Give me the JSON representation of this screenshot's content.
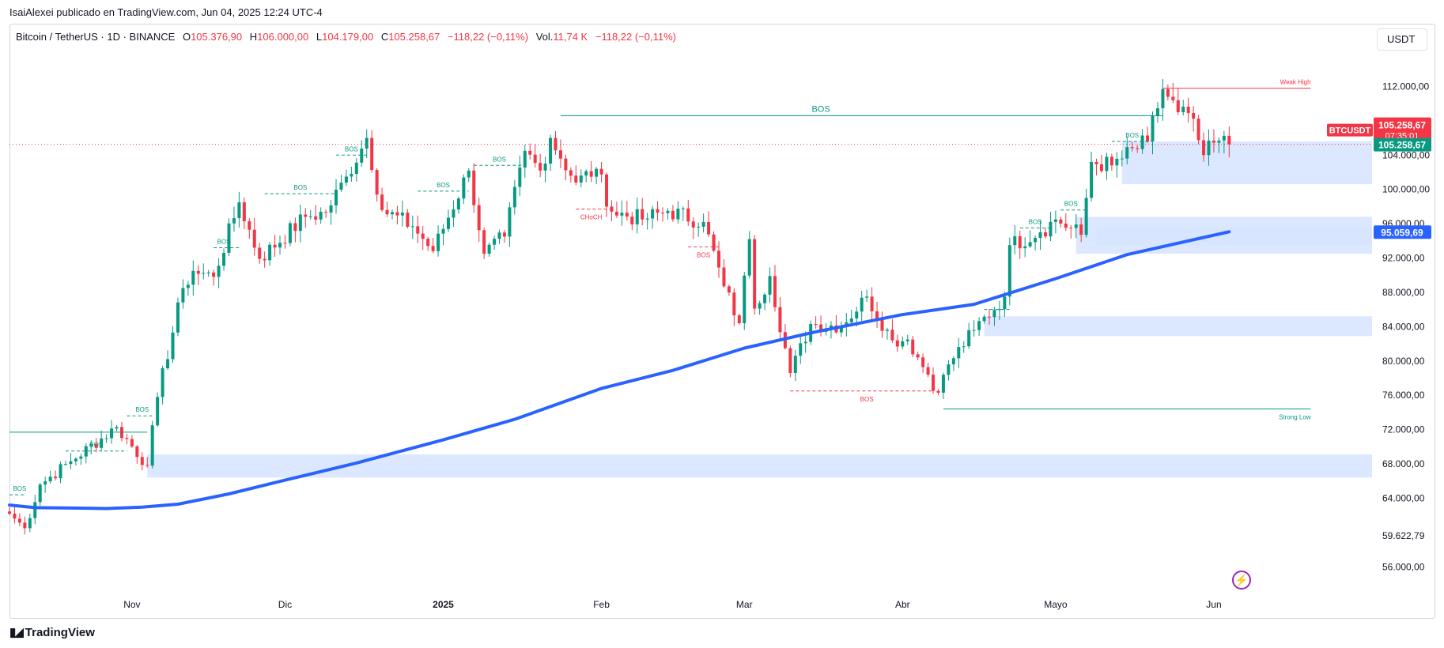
{
  "header": {
    "published": "IsaiAlexei publicado en TradingView.com, Jun 04, 2025 12:24 UTC-4"
  },
  "legend": {
    "symbol": "Bitcoin / TetherUS · 1D · BINANCE",
    "open_label": "O",
    "open": "105.376,90",
    "high_label": "H",
    "high": "106.000,00",
    "low_label": "L",
    "low": "104.179,00",
    "close_label": "C",
    "close": "105.258,67",
    "change": "−118,22 (−0,11%)",
    "vol_label": "Vol.",
    "vol": "11,74 K",
    "vol_change": "−118,22 (−0,11%)"
  },
  "currency_button": "USDT",
  "brand": "TradingView",
  "colors": {
    "up": "#089981",
    "down": "#f23645",
    "ma": "#2962ff",
    "zone": "#d6e4ff",
    "bos": "#089981",
    "bearish": "#f23645"
  },
  "chart_data": {
    "type": "candlestick",
    "symbol": "BTCUSDT",
    "x_ticks": [
      {
        "date": "2024-11-01",
        "label": "Nov"
      },
      {
        "date": "2024-12-01",
        "label": "Dic"
      },
      {
        "date": "2025-01-01",
        "label": "2025"
      },
      {
        "date": "2025-02-01",
        "label": "Feb"
      },
      {
        "date": "2025-03-01",
        "label": "Mar"
      },
      {
        "date": "2025-04-01",
        "label": "Abr"
      },
      {
        "date": "2025-05-01",
        "label": "Mayo"
      },
      {
        "date": "2025-06-01",
        "label": "Jun"
      }
    ],
    "x_range": [
      "2024-10-08",
      "2025-07-02"
    ],
    "ylim": [
      52800,
      116000
    ],
    "y_ticks": [
      {
        "value": 112000,
        "label": "112.000,00"
      },
      {
        "value": 104000,
        "label": "104.000,00"
      },
      {
        "value": 100000,
        "label": "100.000,00"
      },
      {
        "value": 96000,
        "label": "96.000,00"
      },
      {
        "value": 92000,
        "label": "92.000,00"
      },
      {
        "value": 88000,
        "label": "88.000,00"
      },
      {
        "value": 84000,
        "label": "84.000,00"
      },
      {
        "value": 80000,
        "label": "80.000,00"
      },
      {
        "value": 76000,
        "label": "76.000,00"
      },
      {
        "value": 72000,
        "label": "72.000,00"
      },
      {
        "value": 68000,
        "label": "68.000,00"
      },
      {
        "value": 64000,
        "label": "64.000,00"
      },
      {
        "value": 56000,
        "label": "56.000,00"
      }
    ],
    "price_labels": [
      {
        "value": 105258.67,
        "text": "BTCUSDT",
        "time": "07:35:01",
        "style": "last-red"
      },
      {
        "value": 105258.67,
        "text": "105.258,67",
        "style": "green"
      },
      {
        "value": 95059.69,
        "text": "95.059,69",
        "style": "blue"
      },
      {
        "value": 59622.79,
        "text": "59.622,79",
        "style": "plain"
      }
    ],
    "anchors": [
      {
        "date": "2024-10-08",
        "close": 62200
      },
      {
        "date": "2024-10-11",
        "close": 60500
      },
      {
        "date": "2024-10-14",
        "close": 65600
      },
      {
        "date": "2024-10-20",
        "close": 68300
      },
      {
        "date": "2024-10-29",
        "close": 72300
      },
      {
        "date": "2024-11-04",
        "close": 67800
      },
      {
        "date": "2024-11-06",
        "close": 75800
      },
      {
        "date": "2024-11-11",
        "close": 88500
      },
      {
        "date": "2024-11-13",
        "close": 90500
      },
      {
        "date": "2024-11-17",
        "close": 89800
      },
      {
        "date": "2024-11-22",
        "close": 98500
      },
      {
        "date": "2024-11-26",
        "close": 91900
      },
      {
        "date": "2024-12-05",
        "close": 96800
      },
      {
        "date": "2024-12-09",
        "close": 97300
      },
      {
        "date": "2024-12-13",
        "close": 101500
      },
      {
        "date": "2024-12-17",
        "close": 106000
      },
      {
        "date": "2024-12-20",
        "close": 97600
      },
      {
        "date": "2024-12-26",
        "close": 95700
      },
      {
        "date": "2024-12-30",
        "close": 92800
      },
      {
        "date": "2025-01-06",
        "close": 102200
      },
      {
        "date": "2025-01-09",
        "close": 92500
      },
      {
        "date": "2025-01-13",
        "close": 94500
      },
      {
        "date": "2025-01-17",
        "close": 104500
      },
      {
        "date": "2025-01-20",
        "close": 102200
      },
      {
        "date": "2025-01-22",
        "close": 106000
      },
      {
        "date": "2025-01-27",
        "close": 100800
      },
      {
        "date": "2025-01-31",
        "close": 102400
      },
      {
        "date": "2025-02-03",
        "close": 97400
      },
      {
        "date": "2025-02-09",
        "close": 96500
      },
      {
        "date": "2025-02-14",
        "close": 97500
      },
      {
        "date": "2025-02-21",
        "close": 96200
      },
      {
        "date": "2025-02-25",
        "close": 88700
      },
      {
        "date": "2025-02-28",
        "close": 84400
      },
      {
        "date": "2025-03-02",
        "close": 94200
      },
      {
        "date": "2025-03-03",
        "close": 86100
      },
      {
        "date": "2025-03-06",
        "close": 89900
      },
      {
        "date": "2025-03-10",
        "close": 78600
      },
      {
        "date": "2025-03-14",
        "close": 84300
      },
      {
        "date": "2025-03-20",
        "close": 84100
      },
      {
        "date": "2025-03-25",
        "close": 87500
      },
      {
        "date": "2025-03-30",
        "close": 82400
      },
      {
        "date": "2025-04-02",
        "close": 82500
      },
      {
        "date": "2025-04-06",
        "close": 78400
      },
      {
        "date": "2025-04-08",
        "close": 76300
      },
      {
        "date": "2025-04-10",
        "close": 79600
      },
      {
        "date": "2025-04-15",
        "close": 83600
      },
      {
        "date": "2025-04-21",
        "close": 87500
      },
      {
        "date": "2025-04-22",
        "close": 93500
      },
      {
        "date": "2025-04-28",
        "close": 95000
      },
      {
        "date": "2025-05-01",
        "close": 96500
      },
      {
        "date": "2025-05-06",
        "close": 94700
      },
      {
        "date": "2025-05-08",
        "close": 103200
      },
      {
        "date": "2025-05-12",
        "close": 102800
      },
      {
        "date": "2025-05-19",
        "close": 105600
      },
      {
        "date": "2025-05-22",
        "close": 111700
      },
      {
        "date": "2025-05-25",
        "close": 109000
      },
      {
        "date": "2025-05-27",
        "close": 108900
      },
      {
        "date": "2025-05-30",
        "close": 104000
      },
      {
        "date": "2025-06-02",
        "close": 105700
      },
      {
        "date": "2025-06-04",
        "close": 105258.67
      }
    ],
    "moving_average": [
      {
        "date": "2024-10-08",
        "value": 63200
      },
      {
        "date": "2024-10-13",
        "value": 62900
      },
      {
        "date": "2024-10-20",
        "value": 62850
      },
      {
        "date": "2024-10-27",
        "value": 62800
      },
      {
        "date": "2024-11-03",
        "value": 62950
      },
      {
        "date": "2024-11-10",
        "value": 63300
      },
      {
        "date": "2024-11-20",
        "value": 64500
      },
      {
        "date": "2024-12-01",
        "value": 66100
      },
      {
        "date": "2024-12-15",
        "value": 68100
      },
      {
        "date": "2025-01-01",
        "value": 70800
      },
      {
        "date": "2025-01-15",
        "value": 73200
      },
      {
        "date": "2025-02-01",
        "value": 76800
      },
      {
        "date": "2025-02-15",
        "value": 78900
      },
      {
        "date": "2025-03-01",
        "value": 81500
      },
      {
        "date": "2025-03-15",
        "value": 83400
      },
      {
        "date": "2025-04-01",
        "value": 85400
      },
      {
        "date": "2025-04-15",
        "value": 86600
      },
      {
        "date": "2025-05-01",
        "value": 89600
      },
      {
        "date": "2025-05-15",
        "value": 92400
      },
      {
        "date": "2025-06-04",
        "value": 95059.69
      }
    ],
    "zones": [
      {
        "from": "2024-11-04",
        "to": "2025-07-02",
        "low": 66400,
        "high": 69100
      },
      {
        "from": "2025-04-17",
        "to": "2025-07-02",
        "low": 82900,
        "high": 85200
      },
      {
        "from": "2025-05-05",
        "to": "2025-07-02",
        "low": 92500,
        "high": 96800
      },
      {
        "from": "2025-05-09",
        "to": "2025-07-02",
        "low": 93500,
        "high": 95500
      },
      {
        "from": "2025-05-14",
        "to": "2025-07-02",
        "low": 100600,
        "high": 105600
      }
    ],
    "levels": [
      {
        "from": "2024-10-08",
        "to": "2024-11-04",
        "value": 71700,
        "color": "bos",
        "dash": false
      },
      {
        "from": "2025-01-24",
        "to": "2025-05-22",
        "value": 108600,
        "color": "bos",
        "dash": false,
        "label": "BOS",
        "label_date": "2025-03-16"
      },
      {
        "from": "2025-05-22",
        "to": "2025-06-20",
        "value": 111800,
        "color": "bearish",
        "dash": false,
        "label": "Weak High",
        "label_date": "2025-06-20",
        "label_side": "above"
      },
      {
        "from": "2025-04-09",
        "to": "2025-06-20",
        "value": 74400,
        "color": "bos",
        "dash": false,
        "label": "Strong Low",
        "label_date": "2025-06-20",
        "label_side": "below"
      },
      {
        "from": "2025-03-10",
        "to": "2025-04-07",
        "value": 76500,
        "color": "bearish",
        "dash": true,
        "label": "BOS",
        "label_date": "2025-03-25",
        "label_side": "below"
      },
      {
        "from": "2025-01-27",
        "to": "2025-02-03",
        "value": 97700,
        "color": "bearish",
        "dash": true,
        "label": "CHoCH",
        "label_date": "2025-01-30",
        "label_side": "below"
      },
      {
        "from": "2025-02-18",
        "to": "2025-02-24",
        "value": 93300,
        "color": "bearish",
        "dash": true,
        "label": "BOS",
        "label_date": "2025-02-21",
        "label_side": "below"
      },
      {
        "from": "2024-10-08",
        "to": "2024-10-11",
        "value": 64400,
        "color": "bos",
        "dash": true,
        "label": "BOS",
        "label_date": "2024-10-10"
      },
      {
        "from": "2024-10-19",
        "to": "2024-10-31",
        "value": 69500,
        "color": "bos",
        "dash": true,
        "label": "BOS",
        "label_date": "2024-10-25"
      },
      {
        "from": "2024-10-31",
        "to": "2024-11-05",
        "value": 73600,
        "color": "bos",
        "dash": true,
        "label": "BOS",
        "label_date": "2024-11-03"
      },
      {
        "from": "2024-11-17",
        "to": "2024-11-22",
        "value": 93200,
        "color": "bos",
        "dash": true,
        "label": "BOS",
        "label_date": "2024-11-19"
      },
      {
        "from": "2024-11-27",
        "to": "2024-12-11",
        "value": 99500,
        "color": "bos",
        "dash": true,
        "label": "BOS",
        "label_date": "2024-12-04"
      },
      {
        "from": "2024-12-11",
        "to": "2024-12-17",
        "value": 104000,
        "color": "bos",
        "dash": true,
        "label": "BOS",
        "label_date": "2024-12-14"
      },
      {
        "from": "2024-12-27",
        "to": "2025-01-06",
        "value": 99800,
        "color": "bos",
        "dash": true,
        "label": "BOS",
        "label_date": "2025-01-01"
      },
      {
        "from": "2025-01-07",
        "to": "2025-01-17",
        "value": 102800,
        "color": "bos",
        "dash": true,
        "label": "BOS",
        "label_date": "2025-01-12"
      },
      {
        "from": "2025-04-24",
        "to": "2025-04-30",
        "value": 95500,
        "color": "bos",
        "dash": true,
        "label": "BOS",
        "label_date": "2025-04-27"
      },
      {
        "from": "2025-05-02",
        "to": "2025-05-07",
        "value": 97600,
        "color": "bos",
        "dash": true,
        "label": "BOS",
        "label_date": "2025-05-04"
      },
      {
        "from": "2025-05-12",
        "to": "2025-05-20",
        "value": 105600,
        "color": "bos",
        "dash": true,
        "label": "BOS",
        "label_date": "2025-05-16"
      },
      {
        "from": "2025-04-17",
        "to": "2025-04-22",
        "value": 86000,
        "color": "bos",
        "dash": true
      }
    ]
  }
}
